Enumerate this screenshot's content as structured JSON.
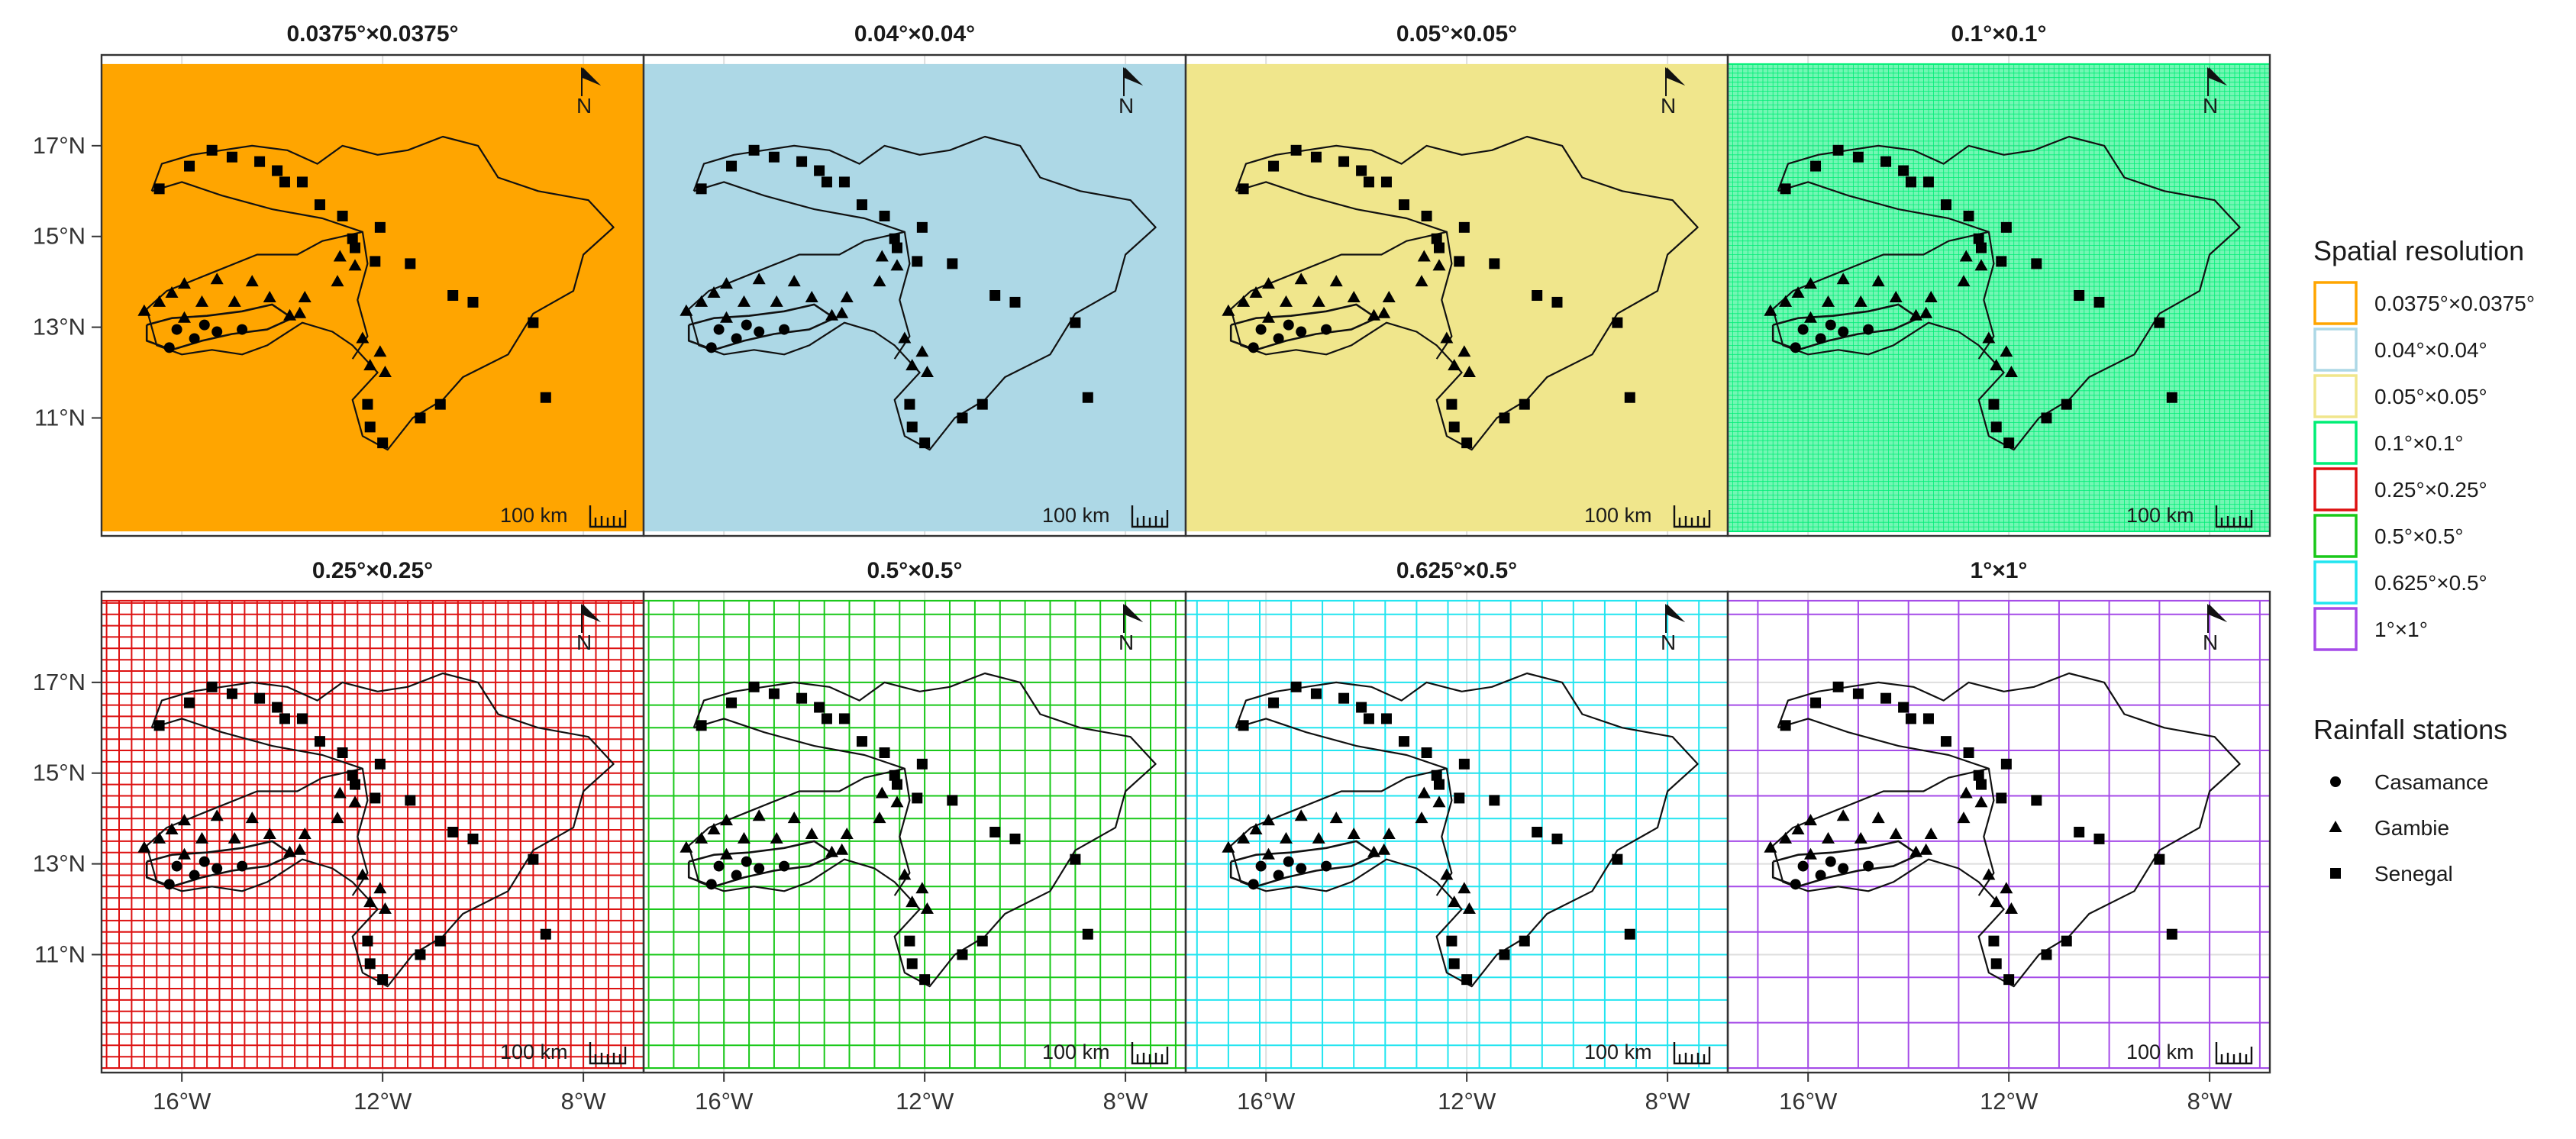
{
  "figure": {
    "panels": [
      {
        "title": "0.0375°×0.0375°",
        "color": "#FFA500",
        "style": "fill",
        "cell_deg": [
          0.0375,
          0.0375
        ]
      },
      {
        "title": "0.04°×0.04°",
        "color": "#ADD8E6",
        "style": "fill",
        "cell_deg": [
          0.04,
          0.04
        ]
      },
      {
        "title": "0.05°×0.05°",
        "color": "#F0E68C",
        "style": "fill",
        "cell_deg": [
          0.05,
          0.05
        ]
      },
      {
        "title": "0.1°×0.1°",
        "color": "#00EE76",
        "style": "fine-grid",
        "cell_deg": [
          0.1,
          0.1
        ]
      },
      {
        "title": "0.25°×0.25°",
        "color": "#DD1111",
        "style": "grid",
        "cell_deg": [
          0.25,
          0.25
        ]
      },
      {
        "title": "0.5°×0.5°",
        "color": "#19C819",
        "style": "grid",
        "cell_deg": [
          0.5,
          0.5
        ]
      },
      {
        "title": "0.625°×0.5°",
        "color": "#22E5F0",
        "style": "grid",
        "cell_deg": [
          0.625,
          0.5
        ]
      },
      {
        "title": "1°×1°",
        "color": "#A54BE8",
        "style": "grid",
        "cell_deg": [
          1,
          1
        ]
      }
    ],
    "x_axis": {
      "ticks": [
        {
          "value": -16,
          "label": "16°W"
        },
        {
          "value": -12,
          "label": "12°W"
        },
        {
          "value": -8,
          "label": "8°W"
        }
      ]
    },
    "y_axis": {
      "ticks": [
        {
          "value": 17,
          "label": "17°N"
        },
        {
          "value": 15,
          "label": "15°N"
        },
        {
          "value": 13,
          "label": "13°N"
        },
        {
          "value": 11,
          "label": "11°N"
        }
      ]
    },
    "scale_bar": {
      "label": "100 km"
    },
    "north_arrow": {
      "label": "N"
    }
  },
  "legend": {
    "resolution_title": "Spatial resolution",
    "resolution_items": [
      {
        "label": "0.0375°×0.0375°",
        "color": "#FFA500"
      },
      {
        "label": "0.04°×0.04°",
        "color": "#ADD8E6"
      },
      {
        "label": "0.05°×0.05°",
        "color": "#F0E68C"
      },
      {
        "label": "0.1°×0.1°",
        "color": "#00EE76"
      },
      {
        "label": "0.25°×0.25°",
        "color": "#DD1111"
      },
      {
        "label": "0.5°×0.5°",
        "color": "#19C819"
      },
      {
        "label": "0.625°×0.5°",
        "color": "#22E5F0"
      },
      {
        "label": "1°×1°",
        "color": "#A54BE8"
      }
    ],
    "stations_title": "Rainfall stations",
    "station_items": [
      {
        "label": "Casamance",
        "symbol": "circle"
      },
      {
        "label": "Gambie",
        "symbol": "triangle"
      },
      {
        "label": "Senegal",
        "symbol": "square"
      }
    ]
  },
  "map_data": {
    "extent": {
      "lon_min": -17.6,
      "lon_max": -6.8,
      "lat_min": 8.4,
      "lat_max": 19.0
    },
    "grid_extent": {
      "lon_min": -18.0,
      "lon_max": -6.0,
      "lat_min": 8.5,
      "lat_max": 18.8
    },
    "basin_outline": [
      [
        -16.6,
        16.0
      ],
      [
        -16.4,
        16.6
      ],
      [
        -15.8,
        16.8
      ],
      [
        -15.2,
        16.9
      ],
      [
        -14.6,
        17.0
      ],
      [
        -13.9,
        16.9
      ],
      [
        -13.3,
        16.6
      ],
      [
        -12.8,
        17.0
      ],
      [
        -12.1,
        16.8
      ],
      [
        -11.5,
        16.9
      ],
      [
        -10.8,
        17.2
      ],
      [
        -10.1,
        17.0
      ],
      [
        -9.7,
        16.3
      ],
      [
        -8.9,
        16.0
      ],
      [
        -7.9,
        15.8
      ],
      [
        -7.4,
        15.2
      ],
      [
        -8.0,
        14.6
      ],
      [
        -8.2,
        13.8
      ],
      [
        -9.0,
        13.3
      ],
      [
        -9.5,
        12.4
      ],
      [
        -10.4,
        11.9
      ],
      [
        -10.8,
        11.4
      ],
      [
        -11.4,
        11.0
      ],
      [
        -11.9,
        10.3
      ],
      [
        -12.4,
        10.6
      ],
      [
        -12.6,
        11.4
      ],
      [
        -12.1,
        12.0
      ],
      [
        -12.6,
        12.6
      ],
      [
        -13.0,
        12.9
      ],
      [
        -13.6,
        13.1
      ],
      [
        -14.3,
        12.6
      ],
      [
        -14.8,
        12.4
      ],
      [
        -15.4,
        12.5
      ],
      [
        -16.0,
        12.4
      ],
      [
        -16.5,
        12.6
      ],
      [
        -16.6,
        13.0
      ],
      [
        -16.7,
        13.4
      ],
      [
        -16.3,
        13.8
      ],
      [
        -15.4,
        14.2
      ],
      [
        -14.5,
        14.6
      ],
      [
        -13.7,
        14.6
      ],
      [
        -13.2,
        14.9
      ],
      [
        -12.4,
        15.1
      ],
      [
        -13.2,
        15.4
      ],
      [
        -14.2,
        15.6
      ],
      [
        -15.2,
        15.9
      ],
      [
        -16.0,
        16.2
      ],
      [
        -16.6,
        16.0
      ]
    ],
    "inner_boundary": [
      [
        -12.4,
        15.1
      ],
      [
        -12.3,
        14.4
      ],
      [
        -12.5,
        13.6
      ],
      [
        -12.3,
        12.8
      ],
      [
        -12.6,
        12.3
      ]
    ],
    "casamance_outline": [
      [
        -16.7,
        13.05
      ],
      [
        -16.2,
        13.2
      ],
      [
        -15.5,
        13.25
      ],
      [
        -14.8,
        13.35
      ],
      [
        -14.2,
        13.5
      ],
      [
        -13.8,
        13.2
      ],
      [
        -14.3,
        12.95
      ],
      [
        -15.0,
        12.85
      ],
      [
        -15.6,
        12.7
      ],
      [
        -16.2,
        12.5
      ],
      [
        -16.7,
        12.7
      ],
      [
        -16.7,
        13.05
      ]
    ],
    "stations": [
      {
        "group": "Senegal",
        "lon": -16.45,
        "lat": 16.05
      },
      {
        "group": "Senegal",
        "lon": -15.85,
        "lat": 16.55
      },
      {
        "group": "Senegal",
        "lon": -15.4,
        "lat": 16.9
      },
      {
        "group": "Senegal",
        "lon": -15.0,
        "lat": 16.75
      },
      {
        "group": "Senegal",
        "lon": -14.45,
        "lat": 16.65
      },
      {
        "group": "Senegal",
        "lon": -14.1,
        "lat": 16.45
      },
      {
        "group": "Senegal",
        "lon": -13.95,
        "lat": 16.2
      },
      {
        "group": "Senegal",
        "lon": -13.6,
        "lat": 16.2
      },
      {
        "group": "Senegal",
        "lon": -13.25,
        "lat": 15.7
      },
      {
        "group": "Senegal",
        "lon": -12.8,
        "lat": 15.45
      },
      {
        "group": "Senegal",
        "lon": -12.05,
        "lat": 15.2
      },
      {
        "group": "Senegal",
        "lon": -12.15,
        "lat": 14.45
      },
      {
        "group": "Senegal",
        "lon": -11.45,
        "lat": 14.4
      },
      {
        "group": "Senegal",
        "lon": -10.6,
        "lat": 13.7
      },
      {
        "group": "Senegal",
        "lon": -10.2,
        "lat": 13.55
      },
      {
        "group": "Senegal",
        "lon": -9.0,
        "lat": 13.1
      },
      {
        "group": "Senegal",
        "lon": -12.3,
        "lat": 11.3
      },
      {
        "group": "Senegal",
        "lon": -12.25,
        "lat": 10.8
      },
      {
        "group": "Senegal",
        "lon": -12.0,
        "lat": 10.45
      },
      {
        "group": "Senegal",
        "lon": -11.25,
        "lat": 11.0
      },
      {
        "group": "Senegal",
        "lon": -10.85,
        "lat": 11.3
      },
      {
        "group": "Senegal",
        "lon": -8.75,
        "lat": 11.45
      },
      {
        "group": "Senegal",
        "lon": -12.55,
        "lat": 14.75
      },
      {
        "group": "Senegal",
        "lon": -12.6,
        "lat": 14.95
      },
      {
        "group": "Gambie",
        "lon": -16.75,
        "lat": 13.35
      },
      {
        "group": "Gambie",
        "lon": -16.45,
        "lat": 13.55
      },
      {
        "group": "Gambie",
        "lon": -16.2,
        "lat": 13.75
      },
      {
        "group": "Gambie",
        "lon": -15.95,
        "lat": 13.95
      },
      {
        "group": "Gambie",
        "lon": -15.6,
        "lat": 13.55
      },
      {
        "group": "Gambie",
        "lon": -15.3,
        "lat": 14.05
      },
      {
        "group": "Gambie",
        "lon": -14.95,
        "lat": 13.55
      },
      {
        "group": "Gambie",
        "lon": -14.6,
        "lat": 14.0
      },
      {
        "group": "Gambie",
        "lon": -14.25,
        "lat": 13.65
      },
      {
        "group": "Gambie",
        "lon": -13.85,
        "lat": 13.25
      },
      {
        "group": "Gambie",
        "lon": -13.65,
        "lat": 13.3
      },
      {
        "group": "Gambie",
        "lon": -13.55,
        "lat": 13.65
      },
      {
        "group": "Gambie",
        "lon": -12.9,
        "lat": 14.0
      },
      {
        "group": "Gambie",
        "lon": -12.55,
        "lat": 14.35
      },
      {
        "group": "Gambie",
        "lon": -12.85,
        "lat": 14.55
      },
      {
        "group": "Gambie",
        "lon": -12.4,
        "lat": 12.75
      },
      {
        "group": "Gambie",
        "lon": -12.05,
        "lat": 12.45
      },
      {
        "group": "Gambie",
        "lon": -12.25,
        "lat": 12.15
      },
      {
        "group": "Gambie",
        "lon": -11.95,
        "lat": 12.0
      },
      {
        "group": "Gambie",
        "lon": -15.95,
        "lat": 13.2
      },
      {
        "group": "Casamance",
        "lon": -16.25,
        "lat": 12.55
      },
      {
        "group": "Casamance",
        "lon": -15.75,
        "lat": 12.75
      },
      {
        "group": "Casamance",
        "lon": -15.55,
        "lat": 13.05
      },
      {
        "group": "Casamance",
        "lon": -15.3,
        "lat": 12.9
      },
      {
        "group": "Casamance",
        "lon": -14.8,
        "lat": 12.95
      },
      {
        "group": "Casamance",
        "lon": -16.1,
        "lat": 12.95
      }
    ]
  }
}
